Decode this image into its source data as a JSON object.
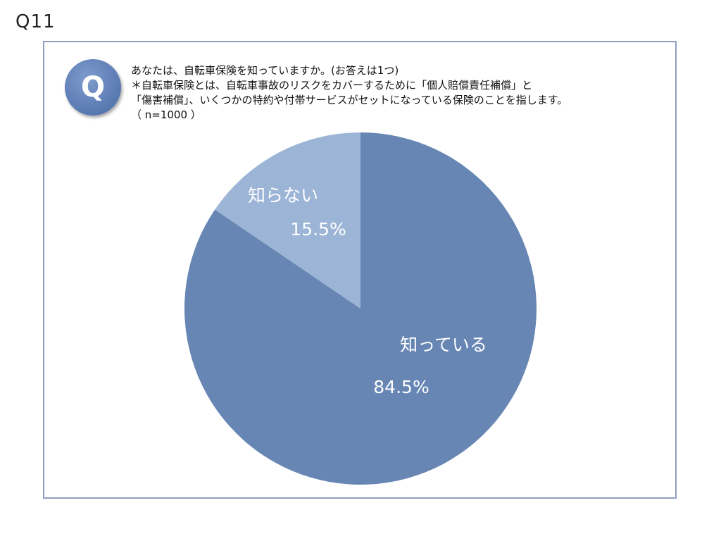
{
  "slide": {
    "number": "Q11"
  },
  "question": {
    "badge": "Q",
    "lines": [
      "あなたは、自転車保険を知っていますか。(お答えは1つ)",
      "＊自転車保険とは、自転車事故のリスクをカバーするために「個人賠償責任補償」と",
      "「傷害補償」、いくつかの特約や付帯サービスがセットになっている保険のことを指します。",
      "（ n=1000 ）"
    ]
  },
  "chart_data": {
    "type": "pie",
    "start_angle_deg": 0,
    "direction": "clockwise",
    "slices": [
      {
        "label": "知っている",
        "value": 84.5,
        "value_label": "84.5%",
        "color": "#6786b4"
      },
      {
        "label": "知らない",
        "value": 15.5,
        "value_label": "15.5%",
        "color": "#9cb5d6"
      }
    ]
  }
}
